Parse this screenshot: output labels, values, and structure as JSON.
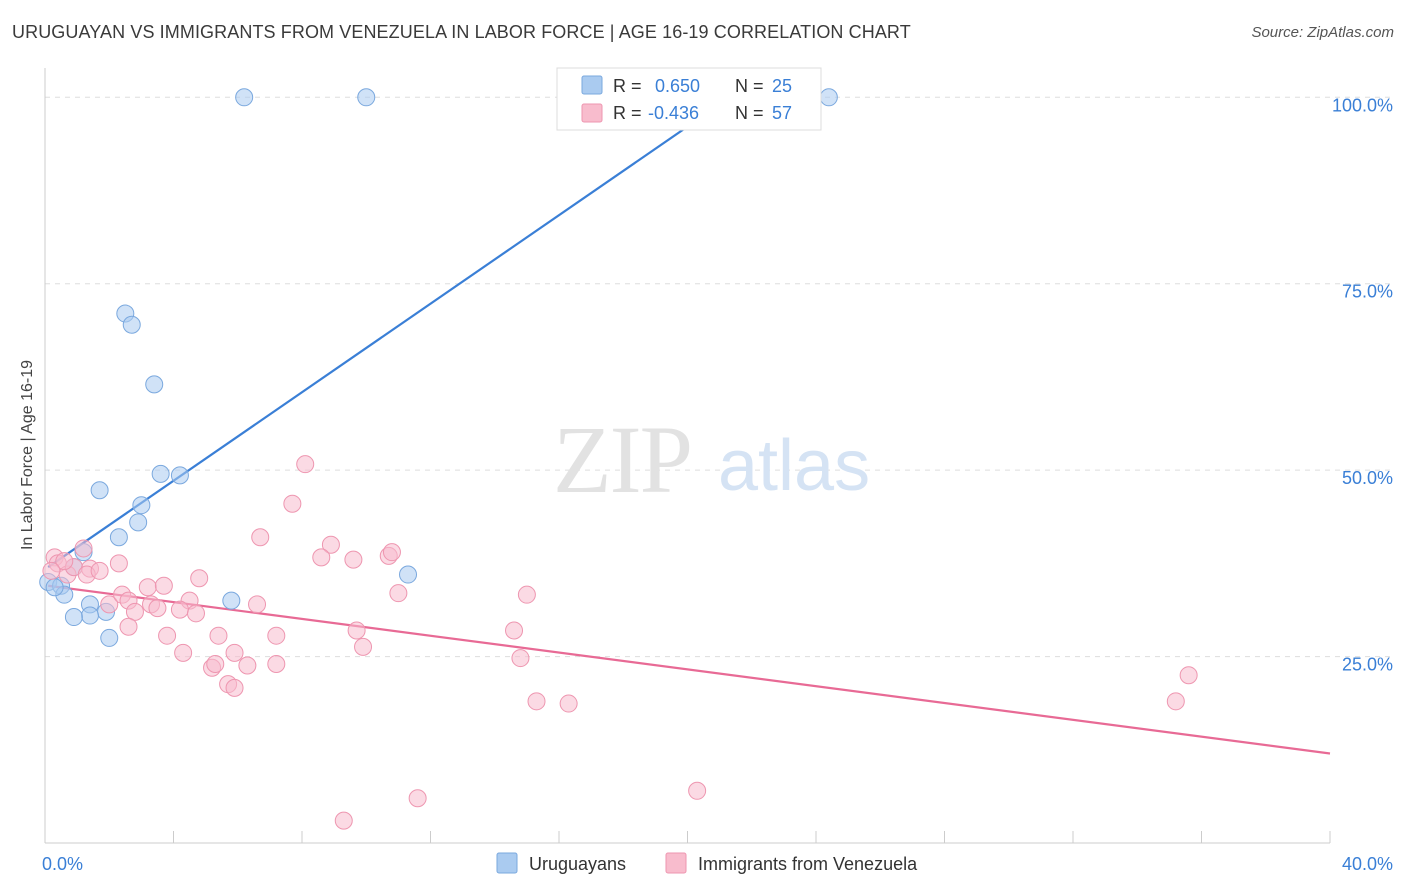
{
  "header": {
    "title": "URUGUAYAN VS IMMIGRANTS FROM VENEZUELA IN LABOR FORCE | AGE 16-19 CORRELATION CHART",
    "source": "Source: ZipAtlas.com"
  },
  "watermark": {
    "zip": "ZIP",
    "atlas": "atlas"
  },
  "legend_box": {
    "rows": [
      {
        "r_label": "R =",
        "r_value": "0.650",
        "n_label": "N =",
        "n_value": "25"
      },
      {
        "r_label": "R =",
        "r_value": "-0.436",
        "n_label": "N =",
        "n_value": "57"
      }
    ]
  },
  "colors": {
    "blue_fill": "#aacbf0",
    "blue_stroke": "#7aa8de",
    "blue_line": "#3a7fd6",
    "pink_fill": "#f8bccd",
    "pink_stroke": "#ee96b0",
    "pink_line": "#e86a95",
    "value_text": "#3a7fd6",
    "grid": "#dddddd"
  },
  "chart_data": {
    "type": "scatter",
    "xlabel": "",
    "ylabel": "In Labor Force | Age 16-19",
    "xlim": [
      0,
      40
    ],
    "ylim": [
      0,
      105
    ],
    "x_tick_labels": [
      {
        "value": 0,
        "label": "0.0%"
      },
      {
        "value": 40,
        "label": "40.0%"
      }
    ],
    "y_tick_labels": [
      {
        "value": 25,
        "label": "25.0%"
      },
      {
        "value": 50,
        "label": "50.0%"
      },
      {
        "value": 75,
        "label": "75.0%"
      },
      {
        "value": 100,
        "label": "100.0%"
      }
    ],
    "y_gridlines": [
      25,
      50,
      75,
      100
    ],
    "x_minor_ticks": [
      4,
      8,
      12,
      16,
      20,
      24,
      28,
      32,
      36,
      40
    ],
    "legend": [
      "Uruguayans",
      "Immigrants from Venezuela"
    ],
    "series": [
      {
        "name": "Uruguayans",
        "color": "blue",
        "r": 0.65,
        "n": 25,
        "trend": {
          "x": [
            0.1,
            22.0
          ],
          "y": [
            37.0,
            102.0
          ]
        },
        "points": [
          [
            6.2,
            100
          ],
          [
            10,
            100
          ],
          [
            24.4,
            100
          ],
          [
            2.5,
            71
          ],
          [
            2.7,
            69.5
          ],
          [
            3.4,
            61.5
          ],
          [
            3.6,
            49.5
          ],
          [
            4.2,
            49.3
          ],
          [
            1.7,
            47.3
          ],
          [
            3.0,
            45.3
          ],
          [
            2.9,
            43.0
          ],
          [
            2.3,
            41.0
          ],
          [
            1.2,
            39.0
          ],
          [
            0.9,
            37.0
          ],
          [
            0.1,
            35.0
          ],
          [
            0.5,
            34.5
          ],
          [
            11.3,
            36.0
          ],
          [
            0.6,
            33.3
          ],
          [
            1.4,
            32.0
          ],
          [
            5.8,
            32.5
          ],
          [
            1.9,
            31.0
          ],
          [
            1.4,
            30.5
          ],
          [
            0.9,
            30.3
          ],
          [
            2.0,
            27.5
          ],
          [
            0.3,
            34.3
          ]
        ]
      },
      {
        "name": "Immigrants from Venezuela",
        "color": "pink",
        "r": -0.436,
        "n": 57,
        "trend": {
          "x": [
            0.1,
            40.0
          ],
          "y": [
            34.5,
            12.0
          ]
        },
        "points": [
          [
            0.3,
            38.3
          ],
          [
            0.4,
            37.5
          ],
          [
            0.7,
            36.0
          ],
          [
            1.2,
            39.5
          ],
          [
            0.9,
            37.0
          ],
          [
            1.4,
            36.8
          ],
          [
            2.3,
            37.5
          ],
          [
            1.3,
            36.0
          ],
          [
            2.0,
            32.0
          ],
          [
            2.4,
            33.3
          ],
          [
            2.6,
            32.5
          ],
          [
            3.2,
            34.3
          ],
          [
            3.7,
            34.5
          ],
          [
            4.8,
            35.5
          ],
          [
            4.5,
            32.5
          ],
          [
            3.3,
            32.0
          ],
          [
            3.5,
            31.5
          ],
          [
            2.8,
            31.0
          ],
          [
            4.2,
            31.3
          ],
          [
            4.7,
            30.8
          ],
          [
            2.6,
            29.0
          ],
          [
            3.8,
            27.8
          ],
          [
            5.4,
            27.8
          ],
          [
            4.3,
            25.5
          ],
          [
            5.2,
            23.5
          ],
          [
            5.9,
            25.5
          ],
          [
            5.3,
            24.0
          ],
          [
            6.3,
            23.8
          ],
          [
            5.7,
            21.3
          ],
          [
            5.9,
            20.8
          ],
          [
            7.2,
            27.8
          ],
          [
            7.2,
            24.0
          ],
          [
            6.6,
            32.0
          ],
          [
            6.7,
            41.0
          ],
          [
            7.7,
            45.5
          ],
          [
            8.1,
            50.8
          ],
          [
            8.9,
            40.0
          ],
          [
            8.6,
            38.3
          ],
          [
            9.6,
            38.0
          ],
          [
            10.7,
            38.5
          ],
          [
            10.8,
            39.0
          ],
          [
            11.0,
            33.5
          ],
          [
            9.7,
            28.5
          ],
          [
            9.9,
            26.3
          ],
          [
            14.6,
            28.5
          ],
          [
            14.8,
            24.8
          ],
          [
            15.0,
            33.3
          ],
          [
            15.3,
            19.0
          ],
          [
            16.3,
            18.7
          ],
          [
            20.3,
            7.0
          ],
          [
            11.6,
            6.0
          ],
          [
            9.3,
            3.0
          ],
          [
            35.6,
            22.5
          ],
          [
            35.2,
            19.0
          ],
          [
            1.7,
            36.5
          ],
          [
            0.6,
            37.8
          ],
          [
            0.2,
            36.5
          ]
        ]
      }
    ]
  }
}
